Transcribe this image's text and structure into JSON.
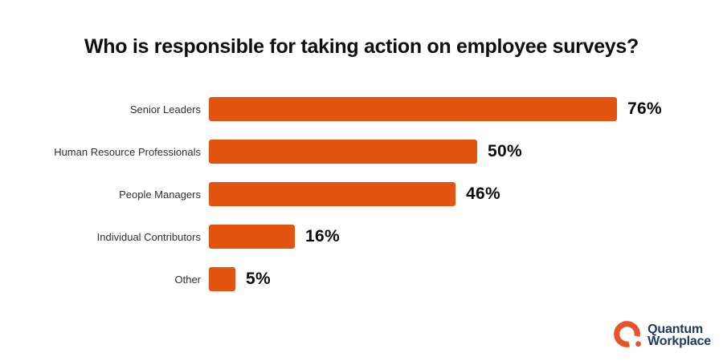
{
  "title": "Who is responsible for taking action on employee surveys?",
  "chart_data": {
    "type": "bar",
    "orientation": "horizontal",
    "title": "Who is responsible for taking action on employee surveys?",
    "categories": [
      "Senior Leaders",
      "Human Resource Professionals",
      "People Managers",
      "Individual Contributors",
      "Other"
    ],
    "values": [
      76,
      50,
      46,
      16,
      5
    ],
    "value_labels": [
      "76%",
      "50%",
      "46%",
      "16%",
      "5%"
    ],
    "xlim": [
      0,
      100
    ],
    "bar_color": "#E2540F",
    "grid": false,
    "legend": false,
    "value_label_position": "end-of-bar",
    "category_label_position": "left"
  },
  "branding": {
    "name": "Quantum Workplace",
    "line1": "Quantum",
    "line2": "Workplace",
    "text_color": "#1F3B64",
    "mark_color": "#E7532B",
    "mark_icon": "quantum-q-ring-icon"
  }
}
